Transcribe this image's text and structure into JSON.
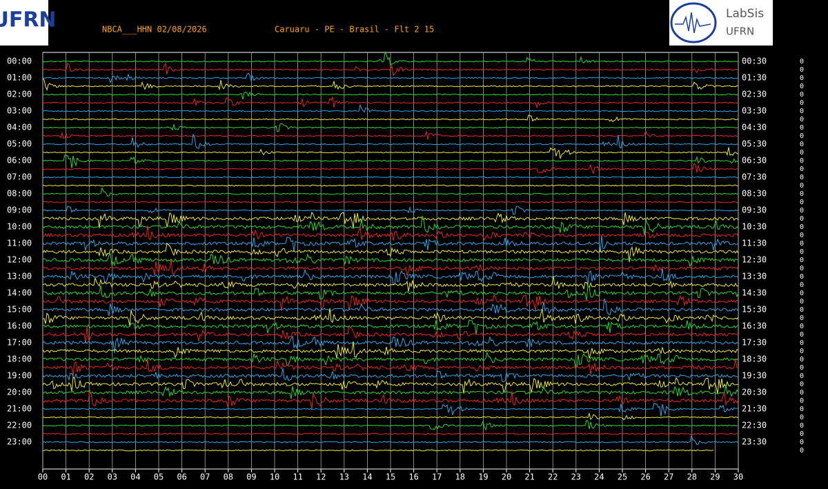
{
  "header": {
    "station": "NBCA___HHN 02/08/2026",
    "location": "Caruaru - PE - Brasil - Flt 2 15",
    "logo_left": "UFRN",
    "logo_right": {
      "title": "LabSis",
      "subtitle": "UFRN"
    }
  },
  "left_labels": [
    "00:00",
    "01:00",
    "02:00",
    "03:00",
    "04:00",
    "05:00",
    "06:00",
    "07:00",
    "08:00",
    "09:00",
    "10:00",
    "11:00",
    "12:00",
    "13:00",
    "14:00",
    "15:00",
    "16:00",
    "17:00",
    "18:00",
    "19:00",
    "20:00",
    "21:00",
    "22:00",
    "23:00"
  ],
  "right_labels": [
    "00:30",
    "01:30",
    "02:30",
    "03:30",
    "04:30",
    "05:30",
    "06:30",
    "07:30",
    "08:30",
    "09:30",
    "10:30",
    "11:30",
    "12:30",
    "13:30",
    "14:30",
    "15:30",
    "16:30",
    "17:30",
    "18:30",
    "19:30",
    "20:30",
    "21:30",
    "22:30",
    "23:30"
  ],
  "x_ticks": [
    "00",
    "01",
    "02",
    "03",
    "04",
    "05",
    "06",
    "07",
    "08",
    "09",
    "10",
    "11",
    "12",
    "13",
    "14",
    "15",
    "16",
    "17",
    "18",
    "19",
    "20",
    "21",
    "22",
    "23",
    "24",
    "25",
    "26",
    "27",
    "28",
    "29",
    "30"
  ],
  "scale_labels": [
    "0",
    "0",
    "0",
    "0",
    "0",
    "0",
    "0",
    "0",
    "0",
    "0",
    "0",
    "0",
    "0",
    "0",
    "0",
    "0",
    "0",
    "0",
    "0",
    "0",
    "0",
    "0",
    "0",
    "0",
    "0",
    "0",
    "0",
    "0",
    "0",
    "0",
    "0",
    "0",
    "0",
    "0",
    "0",
    "0",
    "0",
    "0",
    "0",
    "0",
    "0",
    "0",
    "0",
    "0",
    "0",
    "0",
    "0",
    "0"
  ]
}
